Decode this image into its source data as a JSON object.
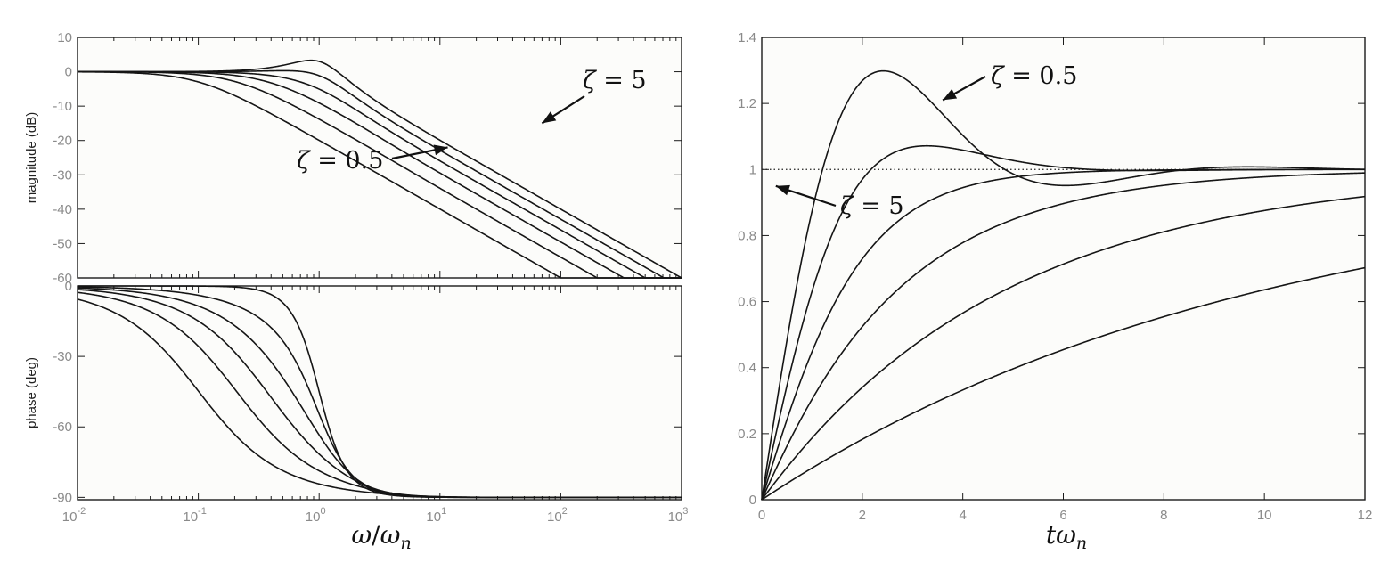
{
  "chart_data": [
    {
      "type": "line",
      "panel": "bode-magnitude",
      "title": "",
      "xlabel": "",
      "ylabel": "magnitude (dB)",
      "xscale": "log",
      "xlim": [
        0.01,
        1000
      ],
      "ylim": [
        -60,
        10
      ],
      "yticks": [
        "10",
        "0",
        "-10",
        "-20",
        "-30",
        "-40",
        "-50",
        "-60"
      ],
      "grid": false,
      "zeta_values": [
        0.5,
        0.7,
        1,
        1.5,
        2.5,
        5
      ],
      "annotations": [
        {
          "text_greek": "ζ",
          "text_rest": " = 5",
          "arrow_to": {
            "x": 70,
            "y": -15
          }
        },
        {
          "text_greek": "ζ",
          "text_rest": " = 0.5",
          "arrow_to": {
            "x": 11.6,
            "y": -22
          }
        }
      ]
    },
    {
      "type": "line",
      "panel": "bode-phase",
      "title": "",
      "xlabel_main": "ω",
      "xlabel_sub": "n",
      "ylabel": "phase (deg)",
      "xscale": "log",
      "xlim": [
        0.01,
        1000
      ],
      "ylim": [
        -91,
        0
      ],
      "xticks": [
        {
          "base": "10",
          "exp": "-2"
        },
        {
          "base": "10",
          "exp": "-1"
        },
        {
          "base": "10",
          "exp": "0"
        },
        {
          "base": "10",
          "exp": "1"
        },
        {
          "base": "10",
          "exp": "2"
        },
        {
          "base": "10",
          "exp": "3"
        }
      ],
      "yticks": [
        "0",
        "-30",
        "-60",
        "-90"
      ],
      "grid": false,
      "zeta_values": [
        0.5,
        0.7,
        1,
        1.5,
        2.5,
        5
      ]
    },
    {
      "type": "line",
      "panel": "step-response",
      "title": "",
      "xlabel_main": "tω",
      "xlabel_sub": "n",
      "ylabel": "",
      "xlim": [
        0,
        12
      ],
      "ylim": [
        0,
        1.4
      ],
      "xticks": [
        "0",
        "2",
        "4",
        "6",
        "8",
        "10",
        "12"
      ],
      "yticks": [
        "0",
        "0.2",
        "0.4",
        "0.6",
        "0.8",
        "1",
        "1.2",
        "1.4"
      ],
      "reference_line": {
        "y": 1,
        "style": "dotted"
      },
      "grid": false,
      "zeta_values": [
        0.5,
        0.7,
        1,
        1.5,
        2.5,
        5
      ],
      "annotations": [
        {
          "text_greek": "ζ",
          "text_rest": " = 0.5",
          "arrow_to": {
            "x": 3.6,
            "y": 1.21
          }
        },
        {
          "text_greek": "ζ",
          "text_rest": " = 5",
          "arrow_to": {
            "x": 0.28,
            "y": 0.95
          }
        }
      ]
    }
  ]
}
